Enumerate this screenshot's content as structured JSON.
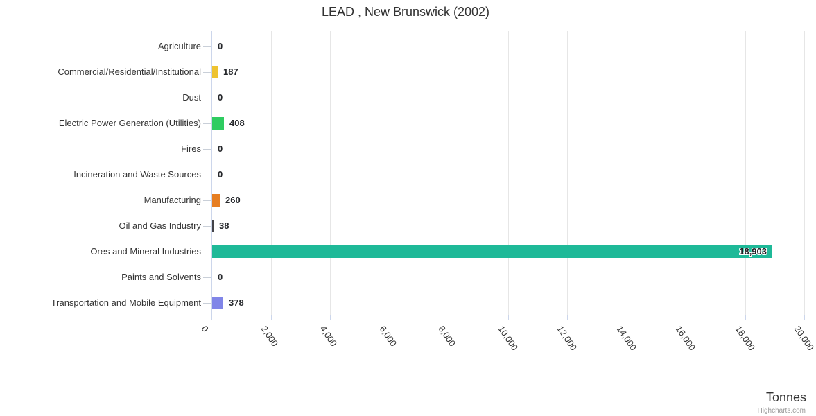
{
  "title": "LEAD , New Brunswick (2002)",
  "credits": "Highcharts.com",
  "chart_data": {
    "type": "bar",
    "orientation": "horizontal",
    "title": "LEAD , New Brunswick (2002)",
    "xlabel": "Tonnes",
    "ylabel": "",
    "xlim": [
      0,
      20000
    ],
    "x_tick_interval": 2000,
    "x_tick_labels": [
      "0",
      "2,000",
      "4,000",
      "6,000",
      "8,000",
      "10,000",
      "12,000",
      "14,000",
      "16,000",
      "18,000",
      "20,000"
    ],
    "grid": true,
    "legend": false,
    "categories": [
      "Agriculture",
      "Commercial/Residential/Institutional",
      "Dust",
      "Electric Power Generation (Utilities)",
      "Fires",
      "Incineration and Waste Sources",
      "Manufacturing",
      "Oil and Gas Industry",
      "Ores and Mineral Industries",
      "Paints and Solvents",
      "Transportation and Mobile Equipment"
    ],
    "values": [
      0,
      187,
      0,
      408,
      0,
      0,
      260,
      38,
      18903,
      0,
      378
    ],
    "value_labels": [
      "0",
      "187",
      "0",
      "408",
      "0",
      "0",
      "260",
      "38",
      "18,903",
      "0",
      "378"
    ],
    "bar_colors": [
      null,
      "#eec331",
      null,
      "#2ecc61",
      null,
      null,
      "#e67e22",
      "#434348",
      "#1eb998",
      null,
      "#8085e8"
    ]
  }
}
